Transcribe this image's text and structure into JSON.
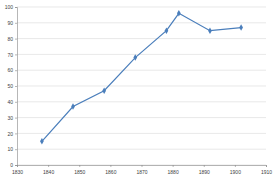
{
  "chart_data": {
    "type": "line",
    "x": [
      1838,
      1848,
      1858,
      1868,
      1878,
      1882,
      1892,
      1902
    ],
    "values": [
      15,
      37,
      47,
      68,
      85,
      96,
      85,
      87
    ],
    "color": "#4a7ebb",
    "marker": "diamond",
    "xlim": [
      1830,
      1910
    ],
    "xticks": [
      1830,
      1840,
      1850,
      1860,
      1870,
      1880,
      1890,
      1900,
      1910
    ],
    "ylim": [
      0,
      100
    ],
    "yticks": [
      0,
      10,
      20,
      30,
      40,
      50,
      60,
      70,
      80,
      90,
      100
    ],
    "grid": true
  }
}
